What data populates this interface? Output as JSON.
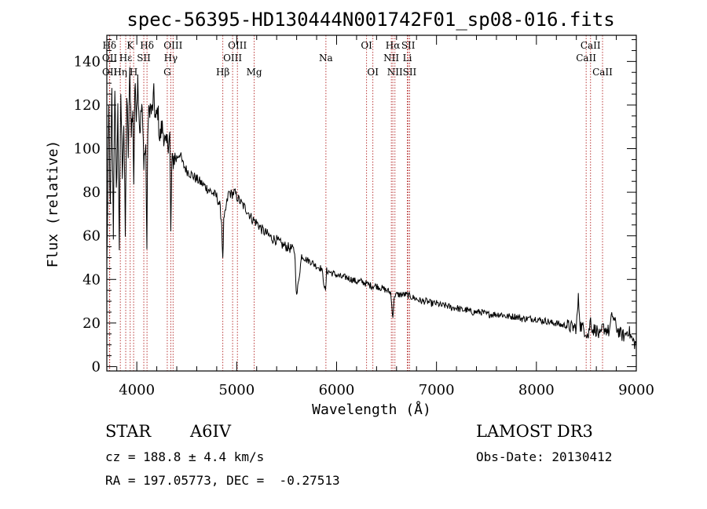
{
  "chart_data": {
    "type": "line",
    "title": "spec-56395-HD130444N001742F01_sp08-016.fits",
    "xlabel": "Wavelength (Å)",
    "ylabel": "Flux (relative)",
    "xlim": [
      3700,
      9000
    ],
    "ylim": [
      -2,
      152
    ],
    "x_ticks": [
      4000,
      5000,
      6000,
      7000,
      8000,
      9000
    ],
    "x_tick_labels": [
      "4000",
      "5000",
      "6000",
      "7000",
      "8000",
      "9000"
    ],
    "y_ticks": [
      0,
      20,
      40,
      60,
      80,
      100,
      120,
      140
    ],
    "y_tick_labels": [
      "0",
      "20",
      "40",
      "60",
      "80",
      "100",
      "120",
      "140"
    ],
    "series": [
      {
        "name": "flux",
        "x": [
          3700,
          3720,
          3735,
          3750,
          3765,
          3780,
          3795,
          3810,
          3825,
          3840,
          3855,
          3870,
          3885,
          3900,
          3915,
          3930,
          3945,
          3960,
          3970,
          3980,
          3995,
          4010,
          4030,
          4050,
          4070,
          4090,
          4101,
          4110,
          4130,
          4150,
          4170,
          4190,
          4210,
          4230,
          4250,
          4270,
          4290,
          4310,
          4330,
          4340,
          4350,
          4370,
          4400,
          4430,
          4460,
          4500,
          4550,
          4600,
          4650,
          4700,
          4750,
          4800,
          4830,
          4850,
          4861,
          4870,
          4890,
          4920,
          4950,
          4980,
          5000,
          5030,
          5060,
          5100,
          5150,
          5200,
          5250,
          5300,
          5350,
          5400,
          5450,
          5500,
          5550,
          5580,
          5600,
          5650,
          5700,
          5750,
          5800,
          5850,
          5889,
          5900,
          5950,
          6000,
          6050,
          6100,
          6150,
          6200,
          6250,
          6300,
          6350,
          6400,
          6450,
          6500,
          6540,
          6563,
          6580,
          6620,
          6660,
          6700,
          6750,
          6800,
          6850,
          6900,
          6950,
          7000,
          7050,
          7100,
          7150,
          7200,
          7250,
          7300,
          7350,
          7400,
          7450,
          7500,
          7550,
          7600,
          7650,
          7700,
          7750,
          7800,
          7850,
          7900,
          7950,
          8000,
          8050,
          8100,
          8150,
          8200,
          8250,
          8300,
          8350,
          8400,
          8420,
          8440,
          8460,
          8498,
          8520,
          8542,
          8560,
          8600,
          8640,
          8662,
          8700,
          8730,
          8760,
          8800,
          8840,
          8880,
          8920,
          8960,
          9000
        ],
        "y": [
          45,
          118,
          70,
          125,
          62,
          130,
          78,
          118,
          55,
          126,
          90,
          112,
          60,
          124,
          98,
          135,
          110,
          115,
          85,
          128,
          118,
          132,
          108,
          120,
          96,
          100,
          54,
          110,
          120,
          116,
          124,
          112,
          118,
          104,
          110,
          107,
          100,
          103,
          106,
          60,
          92,
          96,
          96,
          98,
          93,
          90,
          88,
          86,
          84,
          82,
          80,
          78,
          74,
          66,
          48,
          66,
          72,
          80,
          79,
          80,
          78,
          76,
          74,
          72,
          68,
          66,
          63,
          61,
          59,
          58,
          56,
          55,
          54,
          53,
          32,
          51,
          49,
          48,
          46,
          45,
          34,
          44,
          43,
          42,
          41,
          41,
          40,
          39,
          39,
          38,
          37,
          37,
          36,
          35,
          34,
          23,
          33,
          33,
          33,
          33,
          32,
          31,
          30,
          30,
          29,
          29,
          28,
          28,
          27,
          27,
          26,
          26,
          25,
          25,
          25,
          24,
          24,
          24,
          24,
          23,
          23,
          23,
          22,
          22,
          22,
          22,
          21,
          21,
          20,
          20,
          19,
          19,
          18,
          18,
          31,
          19,
          18,
          16,
          14,
          22,
          17,
          17,
          13,
          18,
          17,
          16,
          24,
          18,
          15,
          14,
          17,
          12,
          10
        ]
      }
    ],
    "spectral_lines": [
      {
        "label": "Hδ",
        "wavelength": 3726,
        "row": 1
      },
      {
        "label": "OII",
        "wavelength": 3728,
        "row": 2
      },
      {
        "label": "OII",
        "wavelength": 3729,
        "row": 3
      },
      {
        "label": "Hε",
        "wavelength": 3889,
        "row": 2
      },
      {
        "label": "Hη",
        "wavelength": 3835,
        "row": 3
      },
      {
        "label": "K",
        "wavelength": 3934,
        "row": 1
      },
      {
        "label": "SII",
        "wavelength": 4070,
        "row": 2
      },
      {
        "label": "H",
        "wavelength": 3968,
        "row": 3
      },
      {
        "label": "Hδ",
        "wavelength": 4102,
        "row": 1
      },
      {
        "label": "OIII",
        "wavelength": 4363,
        "row": 1
      },
      {
        "label": "Hγ",
        "wavelength": 4340,
        "row": 2
      },
      {
        "label": "G",
        "wavelength": 4305,
        "row": 3
      },
      {
        "label": "OIII",
        "wavelength": 5007,
        "row": 1
      },
      {
        "label": "OIII",
        "wavelength": 4959,
        "row": 2
      },
      {
        "label": "Hβ",
        "wavelength": 4861,
        "row": 3
      },
      {
        "label": "Mg",
        "wavelength": 5175,
        "row": 3
      },
      {
        "label": "Na",
        "wavelength": 5893,
        "row": 2
      },
      {
        "label": "OI",
        "wavelength": 6300,
        "row": 1
      },
      {
        "label": "OI",
        "wavelength": 6363,
        "row": 3
      },
      {
        "label": "Hα",
        "wavelength": 6563,
        "row": 1
      },
      {
        "label": "NII",
        "wavelength": 6548,
        "row": 2
      },
      {
        "label": "NII",
        "wavelength": 6584,
        "row": 3
      },
      {
        "label": "SII",
        "wavelength": 6717,
        "row": 1
      },
      {
        "label": "Li",
        "wavelength": 6708,
        "row": 2
      },
      {
        "label": "SII",
        "wavelength": 6731,
        "row": 3
      },
      {
        "label": "CaII",
        "wavelength": 8542,
        "row": 1
      },
      {
        "label": "CaII",
        "wavelength": 8498,
        "row": 2
      },
      {
        "label": "CaII",
        "wavelength": 8662,
        "row": 3
      }
    ]
  },
  "info": {
    "object_type": "STAR",
    "spectral_class": "A6IV",
    "cz": "cz = 188.8 ± 4.4 km/s",
    "coords": "RA = 197.05773, DEC =  -0.27513",
    "survey": "LAMOST DR3",
    "obs_date": "Obs-Date: 20130412"
  }
}
